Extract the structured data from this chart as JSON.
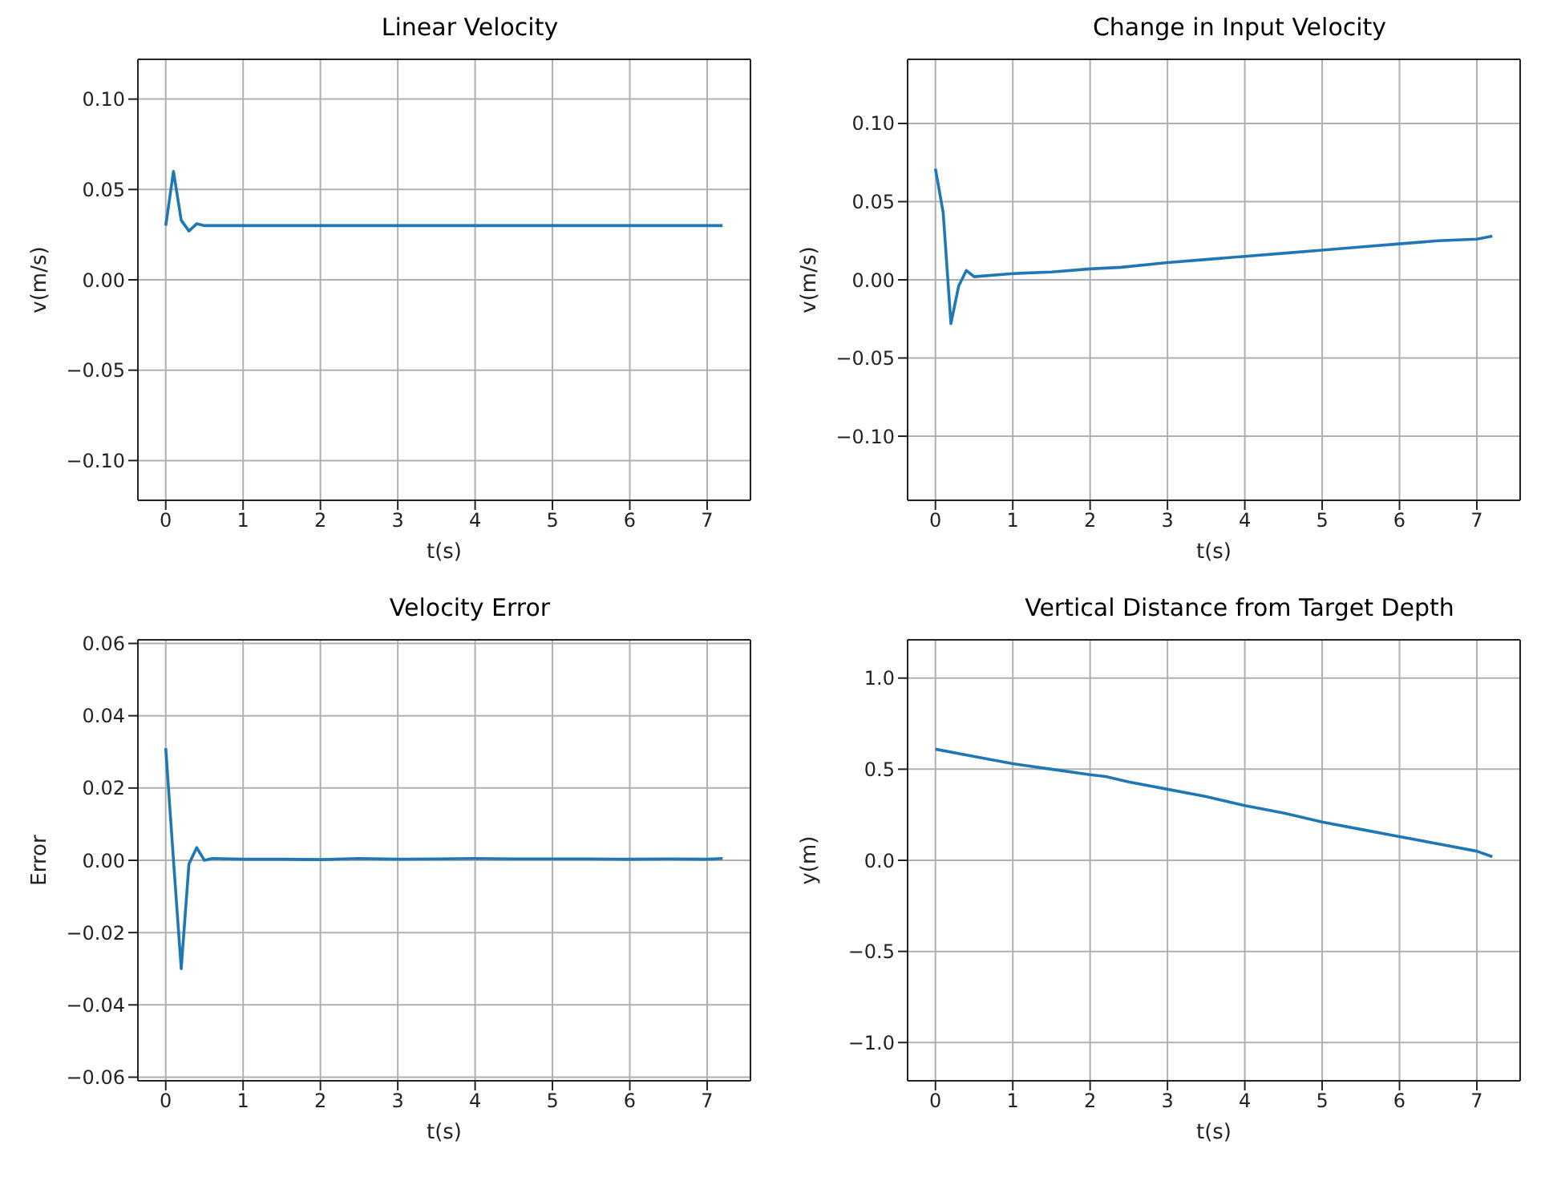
{
  "chart_data": [
    {
      "type": "line",
      "title": "Linear Velocity",
      "xlabel": "t(s)",
      "ylabel": "v(m/s)",
      "x": [
        0,
        0.1,
        0.2,
        0.3,
        0.4,
        0.5,
        1,
        1.5,
        2,
        2.5,
        3,
        3.5,
        4,
        4.5,
        5,
        5.5,
        6,
        6.5,
        7,
        7.2
      ],
      "values": [
        0.03,
        0.06,
        0.033,
        0.027,
        0.031,
        0.03,
        0.03,
        0.03,
        0.03,
        0.03,
        0.03,
        0.03,
        0.03,
        0.03,
        0.03,
        0.03,
        0.03,
        0.03,
        0.03,
        0.03
      ],
      "color": "#1f77b4",
      "xlim": [
        -0.36,
        7.56
      ],
      "xticks": [
        0,
        1,
        2,
        3,
        4,
        5,
        6,
        7
      ],
      "ylim": [
        -0.122,
        0.122
      ],
      "yticks": [
        {
          "value": -0.1,
          "label": "−0.10"
        },
        {
          "value": -0.05,
          "label": "−0.05"
        },
        {
          "value": 0,
          "label": "0.00"
        },
        {
          "value": 0.05,
          "label": "0.05"
        },
        {
          "value": 0.1,
          "label": "0.10"
        }
      ],
      "grid": true
    },
    {
      "type": "line",
      "title": "Change in Input Velocity",
      "xlabel": "t(s)",
      "ylabel": "v(m/s)",
      "x": [
        0,
        0.1,
        0.2,
        0.3,
        0.4,
        0.5,
        1,
        1.5,
        2,
        2.4,
        3,
        3.5,
        4,
        4.5,
        5,
        5.5,
        6,
        6.5,
        7,
        7.2
      ],
      "values": [
        0.071,
        0.043,
        -0.028,
        -0.004,
        0.006,
        0.002,
        0.004,
        0.005,
        0.007,
        0.008,
        0.011,
        0.013,
        0.015,
        0.017,
        0.019,
        0.021,
        0.023,
        0.025,
        0.026,
        0.028
      ],
      "color": "#1f77b4",
      "xlim": [
        -0.36,
        7.56
      ],
      "xticks": [
        0,
        1,
        2,
        3,
        4,
        5,
        6,
        7
      ],
      "ylim": [
        -0.141,
        0.141
      ],
      "yticks": [
        {
          "value": -0.1,
          "label": "−0.10"
        },
        {
          "value": -0.05,
          "label": "−0.05"
        },
        {
          "value": 0,
          "label": "0.00"
        },
        {
          "value": 0.05,
          "label": "0.05"
        },
        {
          "value": 0.1,
          "label": "0.10"
        }
      ],
      "grid": true
    },
    {
      "type": "line",
      "title": "Velocity Error",
      "xlabel": "t(s)",
      "ylabel": "Error",
      "x": [
        0,
        0.1,
        0.2,
        0.3,
        0.4,
        0.5,
        0.6,
        1,
        1.5,
        2,
        2.5,
        3,
        3.5,
        4,
        4.5,
        5,
        5.5,
        6,
        6.5,
        7,
        7.2
      ],
      "values": [
        0.031,
        0.0,
        -0.03,
        -0.001,
        0.0035,
        0,
        0.0005,
        0.0003,
        0.0003,
        0.0002,
        0.0005,
        0.0003,
        0.0004,
        0.0005,
        0.0004,
        0.0004,
        0.0004,
        0.0003,
        0.0004,
        0.0003,
        0.0005
      ],
      "color": "#1f77b4",
      "xlim": [
        -0.36,
        7.56
      ],
      "xticks": [
        0,
        1,
        2,
        3,
        4,
        5,
        6,
        7
      ],
      "ylim": [
        -0.061,
        0.061
      ],
      "yticks": [
        {
          "value": -0.06,
          "label": "−0.06"
        },
        {
          "value": -0.04,
          "label": "−0.04"
        },
        {
          "value": -0.02,
          "label": "−0.02"
        },
        {
          "value": 0,
          "label": "0.00"
        },
        {
          "value": 0.02,
          "label": "0.02"
        },
        {
          "value": 0.04,
          "label": "0.04"
        },
        {
          "value": 0.06,
          "label": "0.06"
        }
      ],
      "grid": true
    },
    {
      "type": "line",
      "title": "Vertical Distance from Target Depth",
      "xlabel": "t(s)",
      "ylabel": "y(m)",
      "x": [
        0,
        0.5,
        1,
        1.5,
        2,
        2.2,
        2.5,
        3,
        3.5,
        4,
        4.5,
        5,
        5.5,
        6,
        6.5,
        7,
        7.2
      ],
      "values": [
        0.61,
        0.57,
        0.53,
        0.5,
        0.47,
        0.46,
        0.43,
        0.39,
        0.35,
        0.3,
        0.26,
        0.21,
        0.17,
        0.13,
        0.09,
        0.05,
        0.02
      ],
      "color": "#1f77b4",
      "xlim": [
        -0.36,
        7.56
      ],
      "xticks": [
        0,
        1,
        2,
        3,
        4,
        5,
        6,
        7
      ],
      "ylim": [
        -1.21,
        1.21
      ],
      "yticks": [
        {
          "value": -1,
          "label": "−1.0"
        },
        {
          "value": -0.5,
          "label": "−0.5"
        },
        {
          "value": 0,
          "label": "0.0"
        },
        {
          "value": 0.5,
          "label": "0.5"
        },
        {
          "value": 1,
          "label": "1.0"
        }
      ],
      "grid": true
    }
  ]
}
